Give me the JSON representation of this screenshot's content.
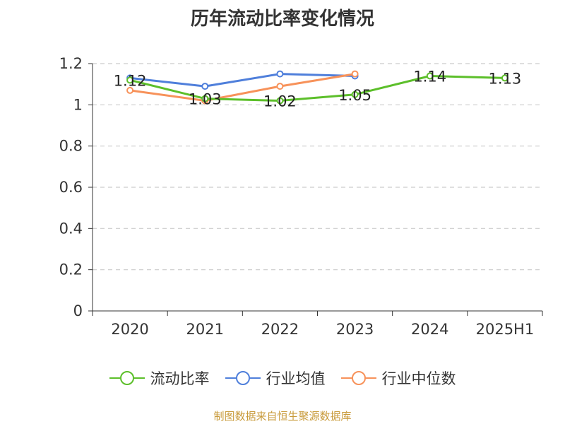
{
  "chart_data": {
    "type": "line",
    "title": "历年流动比率变化情况",
    "categories": [
      "2020",
      "2021",
      "2022",
      "2023",
      "2024",
      "2025H1"
    ],
    "ylim": [
      0,
      1.2
    ],
    "yticks": [
      "0",
      "0.2",
      "0.4",
      "0.6",
      "0.8",
      "1",
      "1.2"
    ],
    "grid": true,
    "legend_position": "bottom",
    "series": [
      {
        "name": "流动比率",
        "color": "#5cbf2a",
        "values": [
          1.12,
          1.03,
          1.02,
          1.05,
          1.14,
          1.13
        ],
        "labels": [
          "1.12",
          "1.03",
          "1.02",
          "1.05",
          "1.14",
          "1.13"
        ]
      },
      {
        "name": "行业均值",
        "color": "#4f7fdb",
        "values": [
          1.13,
          1.09,
          1.15,
          1.14,
          null,
          null
        ]
      },
      {
        "name": "行业中位数",
        "color": "#f7925a",
        "values": [
          1.07,
          1.02,
          1.09,
          1.15,
          null,
          null
        ]
      }
    ]
  },
  "footer": {
    "source": "制图数据来自恒生聚源数据库",
    "color": "#c89a3a"
  }
}
